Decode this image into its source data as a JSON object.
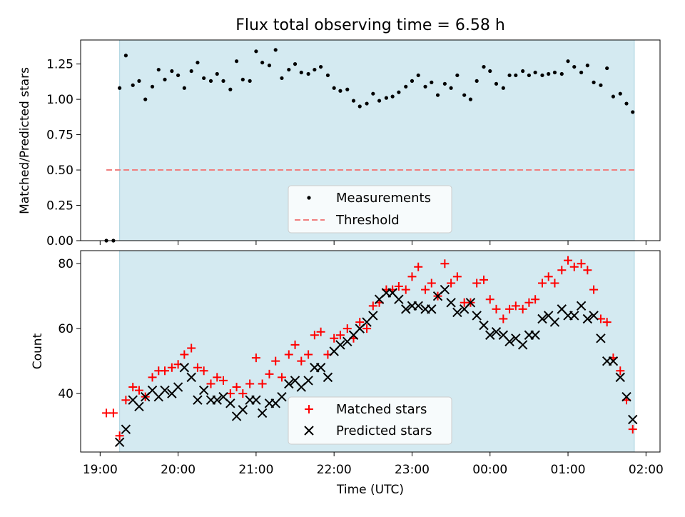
{
  "title": "Flux total observing time = 6.58 h",
  "colors": {
    "shade": "#d4eaf1",
    "shade_edge": "#a9d3e0",
    "measurement": "#000000",
    "threshold": "#f07f7f",
    "matched": "#ff0000",
    "predicted": "#000000"
  },
  "chart_data": [
    {
      "type": "scatter",
      "ylabel": "Matched/Predicted stars",
      "xlabel": "",
      "x_range_hours": [
        18.75,
        26.18
      ],
      "ylim": [
        0,
        1.42
      ],
      "yticks": [
        0.0,
        0.25,
        0.5,
        0.75,
        1.0,
        1.25
      ],
      "ytick_labels": [
        "0.00",
        "0.25",
        "0.50",
        "0.75",
        "1.00",
        "1.25"
      ],
      "xticks": [
        19,
        20,
        21,
        22,
        23,
        24,
        25,
        26
      ],
      "shaded_interval_hours": [
        19.25,
        25.85
      ],
      "legend": {
        "placement": "lower center",
        "entries": [
          "Measurements",
          "Threshold"
        ]
      },
      "threshold": {
        "name": "Threshold",
        "value": 0.5,
        "x_start_hours": 19.08,
        "x_end_hours": 25.85
      },
      "series": [
        {
          "name": "Measurements",
          "points": [
            [
              19.08,
              0.0
            ],
            [
              19.17,
              0.0
            ],
            [
              19.25,
              1.08
            ],
            [
              19.33,
              1.31
            ],
            [
              19.42,
              1.1
            ],
            [
              19.5,
              1.13
            ],
            [
              19.58,
              1.0
            ],
            [
              19.67,
              1.09
            ],
            [
              19.75,
              1.21
            ],
            [
              19.83,
              1.14
            ],
            [
              19.92,
              1.2
            ],
            [
              20.0,
              1.17
            ],
            [
              20.08,
              1.08
            ],
            [
              20.17,
              1.2
            ],
            [
              20.25,
              1.26
            ],
            [
              20.33,
              1.15
            ],
            [
              20.42,
              1.13
            ],
            [
              20.5,
              1.18
            ],
            [
              20.58,
              1.13
            ],
            [
              20.67,
              1.07
            ],
            [
              20.75,
              1.27
            ],
            [
              20.83,
              1.14
            ],
            [
              20.92,
              1.13
            ],
            [
              21.0,
              1.34
            ],
            [
              21.08,
              1.26
            ],
            [
              21.17,
              1.24
            ],
            [
              21.25,
              1.35
            ],
            [
              21.33,
              1.15
            ],
            [
              21.42,
              1.21
            ],
            [
              21.5,
              1.25
            ],
            [
              21.58,
              1.19
            ],
            [
              21.67,
              1.18
            ],
            [
              21.75,
              1.21
            ],
            [
              21.83,
              1.23
            ],
            [
              21.92,
              1.17
            ],
            [
              22.0,
              1.08
            ],
            [
              22.08,
              1.06
            ],
            [
              22.17,
              1.07
            ],
            [
              22.25,
              0.99
            ],
            [
              22.33,
              0.95
            ],
            [
              22.42,
              0.97
            ],
            [
              22.5,
              1.04
            ],
            [
              22.58,
              0.99
            ],
            [
              22.67,
              1.01
            ],
            [
              22.75,
              1.02
            ],
            [
              22.83,
              1.05
            ],
            [
              22.92,
              1.09
            ],
            [
              23.0,
              1.13
            ],
            [
              23.08,
              1.17
            ],
            [
              23.17,
              1.09
            ],
            [
              23.25,
              1.12
            ],
            [
              23.33,
              1.03
            ],
            [
              23.42,
              1.11
            ],
            [
              23.5,
              1.08
            ],
            [
              23.58,
              1.17
            ],
            [
              23.67,
              1.03
            ],
            [
              23.75,
              1.0
            ],
            [
              23.83,
              1.13
            ],
            [
              23.92,
              1.23
            ],
            [
              24.0,
              1.2
            ],
            [
              24.08,
              1.11
            ],
            [
              24.17,
              1.08
            ],
            [
              24.25,
              1.17
            ],
            [
              24.33,
              1.17
            ],
            [
              24.42,
              1.2
            ],
            [
              24.5,
              1.17
            ],
            [
              24.58,
              1.19
            ],
            [
              24.67,
              1.17
            ],
            [
              24.75,
              1.18
            ],
            [
              24.83,
              1.19
            ],
            [
              24.92,
              1.18
            ],
            [
              25.0,
              1.27
            ],
            [
              25.08,
              1.23
            ],
            [
              25.17,
              1.19
            ],
            [
              25.25,
              1.24
            ],
            [
              25.33,
              1.12
            ],
            [
              25.42,
              1.1
            ],
            [
              25.5,
              1.22
            ],
            [
              25.58,
              1.02
            ],
            [
              25.67,
              1.04
            ],
            [
              25.75,
              0.97
            ],
            [
              25.83,
              0.91
            ]
          ]
        }
      ]
    },
    {
      "type": "scatter",
      "ylabel": "Count",
      "xlabel": "Time (UTC)",
      "x_range_hours": [
        18.75,
        26.18
      ],
      "ylim": [
        22.0,
        84.0
      ],
      "yticks": [
        40,
        60,
        80
      ],
      "ytick_labels": [
        "40",
        "60",
        "80"
      ],
      "xticks": [
        19,
        20,
        21,
        22,
        23,
        24,
        25,
        26
      ],
      "xtick_labels": [
        "19:00",
        "20:00",
        "21:00",
        "22:00",
        "23:00",
        "00:00",
        "01:00",
        "02:00"
      ],
      "shaded_interval_hours": [
        19.25,
        25.85
      ],
      "legend": {
        "placement": "lower center",
        "entries": [
          "Matched stars",
          "Predicted stars"
        ]
      },
      "series": [
        {
          "name": "Matched stars",
          "marker": "plus",
          "points": [
            [
              19.08,
              34
            ],
            [
              19.17,
              34
            ],
            [
              19.25,
              27
            ],
            [
              19.33,
              38
            ],
            [
              19.42,
              42
            ],
            [
              19.5,
              41
            ],
            [
              19.58,
              39
            ],
            [
              19.67,
              45
            ],
            [
              19.75,
              47
            ],
            [
              19.83,
              47
            ],
            [
              19.92,
              48
            ],
            [
              20.0,
              49
            ],
            [
              20.08,
              52
            ],
            [
              20.17,
              54
            ],
            [
              20.25,
              48
            ],
            [
              20.33,
              47
            ],
            [
              20.42,
              43
            ],
            [
              20.5,
              45
            ],
            [
              20.58,
              44
            ],
            [
              20.67,
              40
            ],
            [
              20.75,
              42
            ],
            [
              20.83,
              40
            ],
            [
              20.92,
              43
            ],
            [
              21.0,
              51
            ],
            [
              21.08,
              43
            ],
            [
              21.17,
              46
            ],
            [
              21.25,
              50
            ],
            [
              21.33,
              45
            ],
            [
              21.42,
              52
            ],
            [
              21.5,
              55
            ],
            [
              21.58,
              50
            ],
            [
              21.67,
              52
            ],
            [
              21.75,
              58
            ],
            [
              21.83,
              59
            ],
            [
              21.92,
              52
            ],
            [
              22.0,
              57
            ],
            [
              22.08,
              58
            ],
            [
              22.17,
              60
            ],
            [
              22.25,
              57
            ],
            [
              22.33,
              62
            ],
            [
              22.42,
              60
            ],
            [
              22.5,
              67
            ],
            [
              22.58,
              68
            ],
            [
              22.67,
              72
            ],
            [
              22.75,
              72
            ],
            [
              22.83,
              73
            ],
            [
              22.92,
              72
            ],
            [
              23.0,
              76
            ],
            [
              23.08,
              79
            ],
            [
              23.17,
              72
            ],
            [
              23.25,
              74
            ],
            [
              23.33,
              70
            ],
            [
              23.42,
              80
            ],
            [
              23.5,
              74
            ],
            [
              23.58,
              76
            ],
            [
              23.67,
              68
            ],
            [
              23.75,
              68
            ],
            [
              23.83,
              74
            ],
            [
              23.92,
              75
            ],
            [
              24.0,
              69
            ],
            [
              24.08,
              66
            ],
            [
              24.17,
              63
            ],
            [
              24.25,
              66
            ],
            [
              24.33,
              67
            ],
            [
              24.42,
              66
            ],
            [
              24.5,
              68
            ],
            [
              24.58,
              69
            ],
            [
              24.67,
              74
            ],
            [
              24.75,
              76
            ],
            [
              24.83,
              74
            ],
            [
              24.92,
              78
            ],
            [
              25.0,
              81
            ],
            [
              25.08,
              79
            ],
            [
              25.17,
              80
            ],
            [
              25.25,
              78
            ],
            [
              25.33,
              72
            ],
            [
              25.42,
              63
            ],
            [
              25.5,
              62
            ],
            [
              25.58,
              51
            ],
            [
              25.67,
              47
            ],
            [
              25.75,
              38
            ],
            [
              25.83,
              29
            ]
          ]
        },
        {
          "name": "Predicted stars",
          "marker": "x",
          "points": [
            [
              19.25,
              25
            ],
            [
              19.33,
              29
            ],
            [
              19.42,
              38
            ],
            [
              19.5,
              36
            ],
            [
              19.58,
              39
            ],
            [
              19.67,
              41
            ],
            [
              19.75,
              39
            ],
            [
              19.83,
              41
            ],
            [
              19.92,
              40
            ],
            [
              20.0,
              42
            ],
            [
              20.08,
              48
            ],
            [
              20.17,
              45
            ],
            [
              20.25,
              38
            ],
            [
              20.33,
              41
            ],
            [
              20.42,
              38
            ],
            [
              20.5,
              38
            ],
            [
              20.58,
              39
            ],
            [
              20.67,
              37
            ],
            [
              20.75,
              33
            ],
            [
              20.83,
              35
            ],
            [
              20.92,
              38
            ],
            [
              21.0,
              38
            ],
            [
              21.08,
              34
            ],
            [
              21.17,
              37
            ],
            [
              21.25,
              37
            ],
            [
              21.33,
              39
            ],
            [
              21.42,
              43
            ],
            [
              21.5,
              44
            ],
            [
              21.58,
              42
            ],
            [
              21.67,
              44
            ],
            [
              21.75,
              48
            ],
            [
              21.83,
              48
            ],
            [
              21.92,
              45
            ],
            [
              22.0,
              53
            ],
            [
              22.08,
              55
            ],
            [
              22.17,
              56
            ],
            [
              22.25,
              58
            ],
            [
              22.33,
              60
            ],
            [
              22.42,
              62
            ],
            [
              22.5,
              64
            ],
            [
              22.58,
              69
            ],
            [
              22.67,
              71
            ],
            [
              22.75,
              71
            ],
            [
              22.83,
              69
            ],
            [
              22.92,
              66
            ],
            [
              23.0,
              67
            ],
            [
              23.08,
              67
            ],
            [
              23.17,
              66
            ],
            [
              23.25,
              66
            ],
            [
              23.33,
              70
            ],
            [
              23.42,
              72
            ],
            [
              23.5,
              68
            ],
            [
              23.58,
              65
            ],
            [
              23.67,
              66
            ],
            [
              23.75,
              68
            ],
            [
              23.83,
              64
            ],
            [
              23.92,
              61
            ],
            [
              24.0,
              58
            ],
            [
              24.08,
              59
            ],
            [
              24.17,
              58
            ],
            [
              24.25,
              56
            ],
            [
              24.33,
              57
            ],
            [
              24.42,
              55
            ],
            [
              24.5,
              58
            ],
            [
              24.58,
              58
            ],
            [
              24.67,
              63
            ],
            [
              24.75,
              64
            ],
            [
              24.83,
              62
            ],
            [
              24.92,
              66
            ],
            [
              25.0,
              64
            ],
            [
              25.08,
              64
            ],
            [
              25.17,
              67
            ],
            [
              25.25,
              63
            ],
            [
              25.33,
              64
            ],
            [
              25.42,
              57
            ],
            [
              25.5,
              50
            ],
            [
              25.58,
              50
            ],
            [
              25.67,
              45
            ],
            [
              25.75,
              39
            ],
            [
              25.83,
              32
            ]
          ]
        }
      ]
    }
  ]
}
